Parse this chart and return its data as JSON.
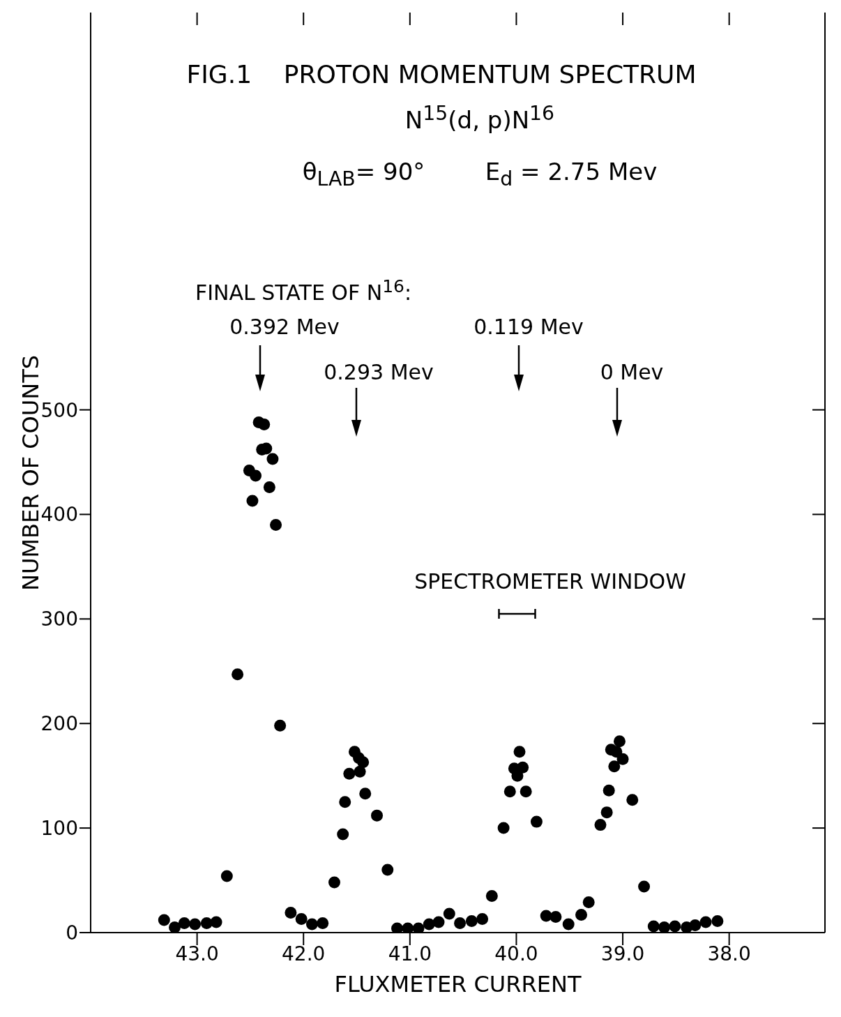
{
  "chart_data": {
    "type": "scatter",
    "title": "FIG.1    PROTON MOMENTUM SPECTRUM",
    "subtitle": "N$^{15}$(d, p)N$^{16}$\nθ$_{LAB}$= 90°        E$_{d}$ = 2.75 Mev",
    "xlabel": "FLUXMETER CURRENT",
    "ylabel": "NUMBER OF COUNTS",
    "xlim": [
      44.0,
      37.1
    ],
    "xticks": [
      {
        "value": 43,
        "label": "43.0"
      },
      {
        "value": 42,
        "label": "42.0"
      },
      {
        "value": 41,
        "label": "41.0"
      },
      {
        "value": 40,
        "label": "40.0"
      },
      {
        "value": 39,
        "label": "39.0"
      },
      {
        "value": 38,
        "label": "38.0"
      }
    ],
    "ylim": [
      0,
      880
    ],
    "yticks": [
      0,
      100,
      200,
      300,
      400,
      500
    ],
    "annotations": [
      "FINAL STATE OF N$^{16}$:",
      "0.392 Mev",
      "0.293 Mev",
      "0.119 Mev",
      "0 Mev",
      "SPECTROMETER WINDOW"
    ],
    "series": [
      {
        "color": "#000000",
        "marker": "circle",
        "x": [
          43.31,
          43.21,
          43.12,
          43.02,
          42.91,
          42.82,
          42.72,
          42.62,
          42.51,
          42.48,
          42.45,
          42.42,
          42.39,
          42.37,
          42.35,
          42.32,
          42.29,
          42.26,
          42.22,
          42.12,
          42.02,
          41.92,
          41.82,
          41.71,
          41.63,
          41.61,
          41.57,
          41.52,
          41.48,
          41.47,
          41.44,
          41.42,
          41.31,
          41.21,
          41.12,
          41.02,
          40.92,
          40.82,
          40.73,
          40.63,
          40.53,
          40.42,
          40.32,
          40.23,
          40.12,
          40.06,
          40.02,
          39.99,
          39.97,
          39.94,
          39.91,
          39.81,
          39.72,
          39.63,
          39.51,
          39.39,
          39.32,
          39.21,
          39.15,
          39.13,
          39.11,
          39.08,
          39.06,
          39.03,
          39.0,
          38.91,
          38.8,
          38.71,
          38.61,
          38.51,
          38.4,
          38.32,
          38.22,
          38.11
        ],
        "values": [
          12,
          5,
          9,
          8,
          9,
          10,
          54,
          247,
          442,
          413,
          437,
          488,
          462,
          486,
          463,
          426,
          453,
          390,
          198,
          19,
          13,
          8,
          9,
          48,
          94,
          125,
          152,
          173,
          167,
          154,
          163,
          133,
          112,
          60,
          4,
          4,
          4,
          8,
          10,
          18,
          9,
          11,
          13,
          35,
          100,
          135,
          157,
          150,
          173,
          158,
          135,
          106,
          16,
          15,
          8,
          17,
          29,
          103,
          115,
          136,
          175,
          159,
          173,
          183,
          166,
          127,
          44,
          6,
          5,
          6,
          5,
          7,
          10,
          11
        ]
      }
    ]
  }
}
